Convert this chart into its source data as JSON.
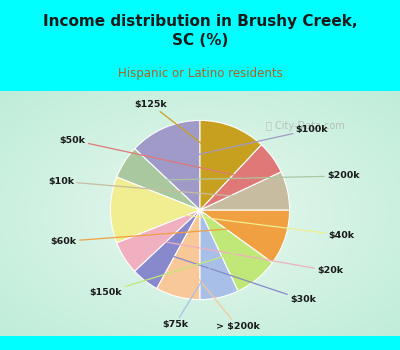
{
  "title": "Income distribution in Brushy Creek,\nSC (%)",
  "subtitle": "Hispanic or Latino residents",
  "title_color": "#1a1a1a",
  "subtitle_color": "#b06020",
  "bg_cyan": "#00FFFF",
  "watermark": "ⓘ City-Data.com",
  "labels": [
    "$100k",
    "$200k",
    "$40k",
    "$20k",
    "$30k",
    "> $200k",
    "$75k",
    "$150k",
    "$60k",
    "$10k",
    "$50k",
    "$125k"
  ],
  "sizes": [
    13,
    6,
    12,
    6,
    5,
    8,
    7,
    8,
    10,
    7,
    6,
    12
  ],
  "colors": [
    "#a09ac8",
    "#aac8a0",
    "#f0ee90",
    "#f0b0c0",
    "#8888cc",
    "#f8c898",
    "#a8c0e8",
    "#c0e878",
    "#f0a040",
    "#c8bca0",
    "#e07878",
    "#c8a020"
  ]
}
